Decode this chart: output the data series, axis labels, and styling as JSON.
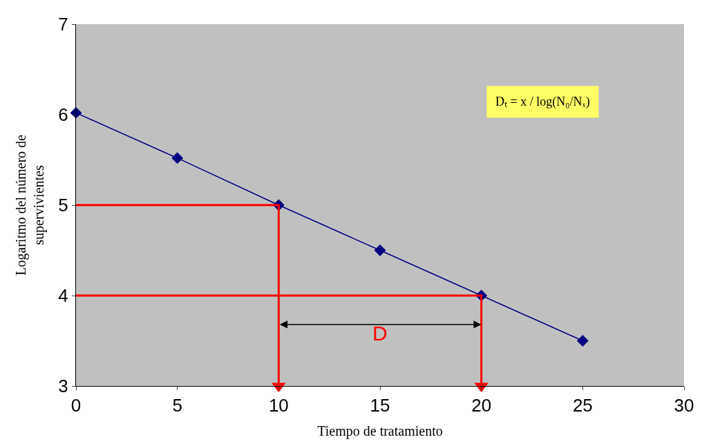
{
  "chart_data": {
    "type": "line",
    "xlabel": "Tiempo de tratamiento",
    "ylabel": "Logaritmo del número de\nsupervivientes",
    "xlim": [
      0,
      30
    ],
    "ylim": [
      3,
      7
    ],
    "xticks": [
      0,
      5,
      10,
      15,
      20,
      25,
      30
    ],
    "yticks": [
      3,
      4,
      5,
      6,
      7
    ],
    "grid": false,
    "series": [
      {
        "color": "#000080",
        "x": [
          0,
          5,
          10,
          15,
          20,
          25
        ],
        "values": [
          6.02,
          5.52,
          5.0,
          4.5,
          4.0,
          3.5
        ],
        "marker": "diamond",
        "line_style": "solid"
      },
      {
        "color": "#ff0000",
        "x": [
          0,
          10,
          10
        ],
        "values": [
          5,
          5,
          3
        ],
        "marker": "none",
        "line_style": "solid"
      },
      {
        "color": "#ff0000",
        "x": [
          0,
          20,
          20
        ],
        "values": [
          4,
          4,
          3
        ],
        "marker": "none",
        "line_style": "solid"
      }
    ],
    "annotations": [
      "Dₜ = x / log(N₀/Nₓ)",
      "D"
    ]
  }
}
